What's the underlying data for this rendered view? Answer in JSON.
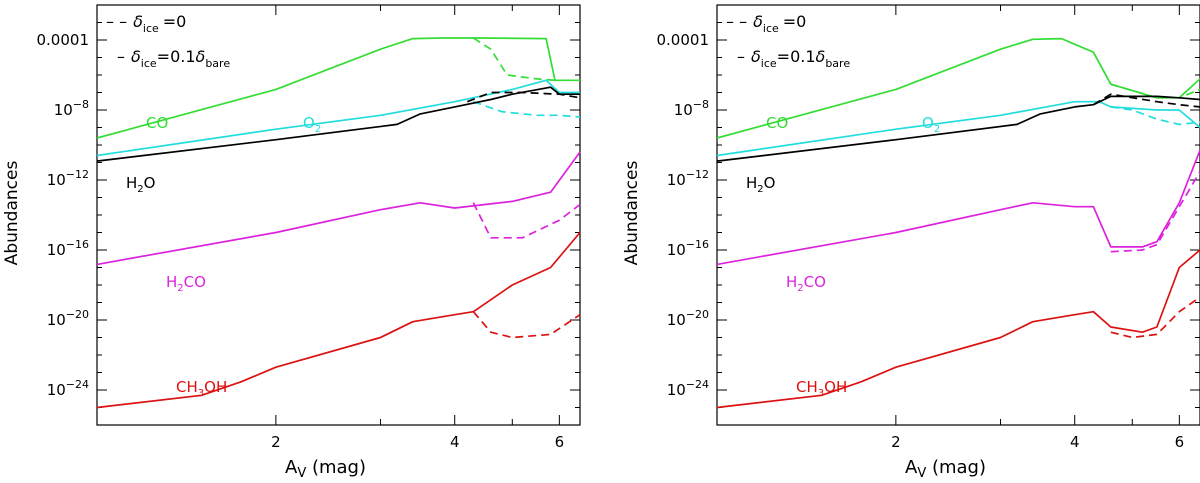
{
  "figure": {
    "ylabel": "Abundances",
    "xlabel_main": "A",
    "xlabel_sub": "V",
    "xlabel_unit": " (mag)"
  },
  "legend": {
    "delta": "δ",
    "ice": "ice",
    "bare": "bare",
    "dashed_value": "=0",
    "solid_value": "=0.1",
    "dashed_dash": "– –",
    "solid_dash": "–"
  },
  "colors": {
    "CO": "#33dd33",
    "O2": "#22dddd",
    "H2O": "#000000",
    "H2CO": "#dd22dd",
    "CH3OH": "#dd1111"
  },
  "chart_data": [
    {
      "type": "line",
      "panel": "left",
      "xlabel": "A_V (mag)",
      "ylabel": "Abundances",
      "xscale": "log",
      "yscale": "log",
      "xlim": [
        1.0,
        6.5
      ],
      "ylim": [
        1e-26,
        0.01
      ],
      "xticks": [
        2,
        4,
        6
      ],
      "yticks": [
        1e-24,
        1e-20,
        1e-16,
        1e-12,
        1e-08,
        0.0001
      ],
      "ytick_labels": [
        "10^-24",
        "10^-20",
        "10^-16",
        "10^-12",
        "10^-8",
        "0.0001"
      ],
      "legend": [
        "δ_ice =0 (dashed)",
        "δ_ice=0.1 δ_bare (solid)"
      ],
      "annotations": [
        {
          "text": "CO",
          "series": "CO"
        },
        {
          "text": "O2",
          "series": "O2"
        },
        {
          "text": "H2O",
          "series": "H2O"
        },
        {
          "text": "H2CO",
          "series": "H2CO"
        },
        {
          "text": "CH3OH",
          "series": "CH3OH"
        }
      ],
      "series": [
        {
          "name": "CO",
          "style": "solid",
          "points": [
            [
              1.0,
              2.5e-10
            ],
            [
              2.0,
              1.5e-07
            ],
            [
              3.0,
              3e-05
            ],
            [
              3.4,
              0.00012
            ],
            [
              3.8,
              0.00013
            ],
            [
              4.4,
              0.00013
            ],
            [
              5.7,
              0.00012
            ],
            [
              5.9,
              5e-07
            ],
            [
              6.5,
              5e-07
            ]
          ]
        },
        {
          "name": "CO",
          "style": "dashed",
          "points": [
            [
              4.3,
              0.00013
            ],
            [
              4.6,
              3e-05
            ],
            [
              4.9,
              1e-06
            ],
            [
              5.5,
              6e-07
            ],
            [
              5.9,
              5e-07
            ]
          ]
        },
        {
          "name": "O2",
          "style": "solid",
          "points": [
            [
              1.0,
              2.5e-11
            ],
            [
              2.0,
              8e-10
            ],
            [
              3.0,
              5e-09
            ],
            [
              4.0,
              3e-08
            ],
            [
              5.0,
              1.5e-07
            ],
            [
              5.7,
              5e-07
            ],
            [
              6.0,
              1e-07
            ],
            [
              6.5,
              1e-07
            ]
          ]
        },
        {
          "name": "O2",
          "style": "dashed",
          "points": [
            [
              4.3,
              3e-08
            ],
            [
              4.8,
              8e-09
            ],
            [
              5.5,
              5e-09
            ],
            [
              6.0,
              5e-09
            ],
            [
              6.5,
              4e-09
            ]
          ]
        },
        {
          "name": "H2O",
          "style": "solid",
          "points": [
            [
              1.0,
              1.2e-11
            ],
            [
              2.0,
              2e-10
            ],
            [
              3.2,
              1.5e-09
            ],
            [
              3.5,
              6e-09
            ],
            [
              4.0,
              1.5e-08
            ],
            [
              4.6,
              4e-08
            ],
            [
              5.0,
              8e-08
            ],
            [
              5.8,
              2e-07
            ],
            [
              6.0,
              8e-08
            ],
            [
              6.5,
              8e-08
            ]
          ]
        },
        {
          "name": "H2O",
          "style": "dashed",
          "points": [
            [
              4.2,
              3e-08
            ],
            [
              4.6,
              1e-07
            ],
            [
              5.2,
              1e-07
            ],
            [
              6.0,
              8e-08
            ],
            [
              6.5,
              5e-08
            ]
          ]
        },
        {
          "name": "H2CO",
          "style": "solid",
          "points": [
            [
              1.0,
              1.5e-17
            ],
            [
              2.0,
              1e-15
            ],
            [
              3.0,
              2e-14
            ],
            [
              3.5,
              5e-14
            ],
            [
              4.0,
              2.5e-14
            ],
            [
              5.0,
              6e-14
            ],
            [
              5.8,
              2e-13
            ],
            [
              6.5,
              4e-11
            ]
          ]
        },
        {
          "name": "H2CO",
          "style": "dashed",
          "points": [
            [
              4.3,
              5e-14
            ],
            [
              4.6,
              5e-16
            ],
            [
              5.2,
              5e-16
            ],
            [
              6.0,
              5e-15
            ],
            [
              6.5,
              4e-14
            ]
          ]
        },
        {
          "name": "CH3OH",
          "style": "solid",
          "points": [
            [
              1.0,
              1e-25
            ],
            [
              1.5,
              5e-25
            ],
            [
              1.75,
              3e-24
            ],
            [
              2.0,
              2e-23
            ],
            [
              3.0,
              1e-21
            ],
            [
              3.4,
              8e-21
            ],
            [
              4.0,
              2e-20
            ],
            [
              4.3,
              3e-20
            ],
            [
              5.0,
              1e-18
            ],
            [
              5.8,
              1e-17
            ],
            [
              6.5,
              1e-15
            ]
          ]
        },
        {
          "name": "CH3OH",
          "style": "dashed",
          "points": [
            [
              4.3,
              3e-20
            ],
            [
              4.6,
              2e-21
            ],
            [
              5.0,
              1e-21
            ],
            [
              5.8,
              1.5e-21
            ],
            [
              6.5,
              2e-20
            ]
          ]
        }
      ]
    },
    {
      "type": "line",
      "panel": "right",
      "xlabel": "A_V (mag)",
      "ylabel": "Abundances",
      "xscale": "log",
      "yscale": "log",
      "xlim": [
        1.0,
        6.5
      ],
      "ylim": [
        1e-26,
        0.01
      ],
      "xticks": [
        2,
        4,
        6
      ],
      "yticks": [
        1e-24,
        1e-20,
        1e-16,
        1e-12,
        1e-08,
        0.0001
      ],
      "ytick_labels": [
        "10^-24",
        "10^-20",
        "10^-16",
        "10^-12",
        "10^-8",
        "0.0001"
      ],
      "legend": [
        "δ_ice =0 (dashed)",
        "δ_ice=0.1 δ_bare (solid)"
      ],
      "annotations": [
        {
          "text": "CO",
          "series": "CO"
        },
        {
          "text": "O2",
          "series": "O2"
        },
        {
          "text": "H2O",
          "series": "H2O"
        },
        {
          "text": "H2CO",
          "series": "H2CO"
        },
        {
          "text": "CH3OH",
          "series": "CH3OH"
        }
      ],
      "series": [
        {
          "name": "CO",
          "style": "solid",
          "points": [
            [
              1.0,
              2.5e-10
            ],
            [
              2.0,
              1.5e-07
            ],
            [
              3.0,
              3e-05
            ],
            [
              3.4,
              0.00011
            ],
            [
              3.8,
              0.00012
            ],
            [
              4.3,
              2e-05
            ],
            [
              4.6,
              3e-07
            ],
            [
              5.5,
              5e-08
            ],
            [
              6.0,
              5e-08
            ],
            [
              6.5,
              6e-07
            ]
          ]
        },
        {
          "name": "CO",
          "style": "dashed",
          "points": [
            [
              4.6,
              3e-07
            ],
            [
              5.5,
              5e-08
            ],
            [
              6.0,
              5e-08
            ],
            [
              6.5,
              1.5e-07
            ]
          ]
        },
        {
          "name": "O2",
          "style": "solid",
          "points": [
            [
              1.0,
              2.5e-11
            ],
            [
              2.0,
              8e-10
            ],
            [
              3.0,
              5e-09
            ],
            [
              4.0,
              3e-08
            ],
            [
              4.4,
              3e-08
            ],
            [
              4.6,
              1.5e-08
            ],
            [
              5.5,
              1e-08
            ],
            [
              6.0,
              1e-08
            ],
            [
              6.5,
              1e-09
            ]
          ]
        },
        {
          "name": "O2",
          "style": "dashed",
          "points": [
            [
              4.6,
              1.5e-08
            ],
            [
              5.0,
              1e-08
            ],
            [
              5.5,
              3e-09
            ],
            [
              6.0,
              1.5e-09
            ],
            [
              6.5,
              2e-09
            ]
          ]
        },
        {
          "name": "H2O",
          "style": "solid",
          "points": [
            [
              1.0,
              1.2e-11
            ],
            [
              2.0,
              2e-10
            ],
            [
              3.2,
              1.5e-09
            ],
            [
              3.5,
              6e-09
            ],
            [
              4.0,
              1.5e-08
            ],
            [
              4.3,
              2e-08
            ],
            [
              4.6,
              6e-08
            ],
            [
              5.5,
              6e-08
            ],
            [
              6.0,
              5e-08
            ],
            [
              6.5,
              4e-08
            ]
          ]
        },
        {
          "name": "H2O",
          "style": "dashed",
          "points": [
            [
              4.3,
              2e-08
            ],
            [
              4.6,
              8e-08
            ],
            [
              5.5,
              3e-08
            ],
            [
              6.0,
              2e-08
            ],
            [
              6.5,
              1.5e-08
            ]
          ]
        },
        {
          "name": "H2CO",
          "style": "solid",
          "points": [
            [
              1.0,
              1.5e-17
            ],
            [
              2.0,
              1e-15
            ],
            [
              3.0,
              2e-14
            ],
            [
              3.4,
              5e-14
            ],
            [
              4.0,
              3e-14
            ],
            [
              4.3,
              3e-14
            ],
            [
              4.6,
              1.5e-16
            ],
            [
              5.2,
              1.5e-16
            ],
            [
              5.5,
              3e-16
            ],
            [
              6.0,
              5e-14
            ],
            [
              6.5,
              5e-11
            ]
          ]
        },
        {
          "name": "H2CO",
          "style": "dashed",
          "points": [
            [
              4.6,
              8e-17
            ],
            [
              5.2,
              1e-16
            ],
            [
              5.5,
              2e-16
            ],
            [
              6.0,
              3e-14
            ],
            [
              6.5,
              3e-12
            ]
          ]
        },
        {
          "name": "CH3OH",
          "style": "solid",
          "points": [
            [
              1.0,
              1e-25
            ],
            [
              1.5,
              5e-25
            ],
            [
              1.75,
              3e-24
            ],
            [
              2.0,
              2e-23
            ],
            [
              3.0,
              1e-21
            ],
            [
              3.4,
              8e-21
            ],
            [
              4.0,
              2e-20
            ],
            [
              4.3,
              3e-20
            ],
            [
              4.6,
              4e-21
            ],
            [
              5.2,
              2e-21
            ],
            [
              5.5,
              4e-21
            ],
            [
              6.0,
              1e-17
            ],
            [
              6.5,
              1e-16
            ]
          ]
        },
        {
          "name": "CH3OH",
          "style": "dashed",
          "points": [
            [
              4.6,
              2e-21
            ],
            [
              5.0,
              1e-21
            ],
            [
              5.5,
              1.5e-21
            ],
            [
              6.0,
              3e-20
            ],
            [
              6.5,
              2e-19
            ]
          ]
        }
      ]
    }
  ]
}
